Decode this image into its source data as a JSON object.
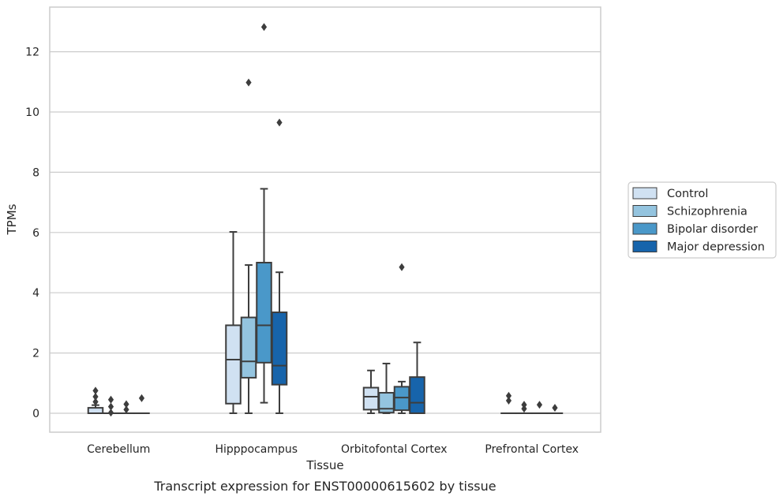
{
  "chart_data": {
    "type": "box",
    "xlabel": "Tissue",
    "ylabel": "TPMs",
    "caption": "Transcript expression for ENST00000615602 by tissue",
    "ylim": [
      -0.62,
      13.5
    ],
    "yticks": [
      0,
      2,
      4,
      6,
      8,
      10,
      12
    ],
    "grid": "horizontal",
    "legend_position": "right",
    "categories": [
      "Cerebellum",
      "Hipppocampus",
      "Orbitofontal Cortex",
      "Prefrontal Cortex"
    ],
    "series": [
      {
        "name": "Control",
        "color": "#d0e1f2",
        "boxes": [
          {
            "q1": 0,
            "median": 0,
            "q3": 0.18,
            "whislo": 0,
            "whishi": 0.27,
            "fliers": [
              0.38,
              0.55,
              0.75
            ]
          },
          {
            "q1": 0.32,
            "median": 1.78,
            "q3": 2.92,
            "whislo": 0,
            "whishi": 6.02,
            "fliers": []
          },
          {
            "q1": 0.12,
            "median": 0.55,
            "q3": 0.85,
            "whislo": 0,
            "whishi": 1.42,
            "fliers": []
          },
          {
            "q1": 0,
            "median": 0,
            "q3": 0,
            "whislo": 0,
            "whishi": 0,
            "fliers": [
              0.42,
              0.58
            ]
          }
        ]
      },
      {
        "name": "Schizophrenia",
        "color": "#94c4df",
        "boxes": [
          {
            "q1": 0,
            "median": 0,
            "q3": 0,
            "whislo": 0,
            "whishi": 0,
            "fliers": [
              0.02,
              0.22,
              0.45
            ]
          },
          {
            "q1": 1.18,
            "median": 1.72,
            "q3": 3.18,
            "whislo": 0,
            "whishi": 4.92,
            "fliers": [
              10.98
            ]
          },
          {
            "q1": 0.02,
            "median": 0.15,
            "q3": 0.68,
            "whislo": 0,
            "whishi": 1.65,
            "fliers": []
          },
          {
            "q1": 0,
            "median": 0,
            "q3": 0,
            "whislo": 0,
            "whishi": 0,
            "fliers": [
              0.15,
              0.28
            ]
          }
        ]
      },
      {
        "name": "Bipolar disorder",
        "color": "#4a98c9",
        "boxes": [
          {
            "q1": 0,
            "median": 0,
            "q3": 0,
            "whislo": 0,
            "whishi": 0,
            "fliers": [
              0.12,
              0.3
            ]
          },
          {
            "q1": 1.68,
            "median": 2.92,
            "q3": 5.0,
            "whislo": 0.35,
            "whishi": 7.45,
            "fliers": [
              12.82
            ]
          },
          {
            "q1": 0.1,
            "median": 0.52,
            "q3": 0.88,
            "whislo": 0,
            "whishi": 1.05,
            "fliers": [
              4.85
            ]
          },
          {
            "q1": 0,
            "median": 0,
            "q3": 0,
            "whislo": 0,
            "whishi": 0,
            "fliers": [
              0.28
            ]
          }
        ]
      },
      {
        "name": "Major depression",
        "color": "#1764ab",
        "boxes": [
          {
            "q1": 0,
            "median": 0,
            "q3": 0,
            "whislo": 0,
            "whishi": 0,
            "fliers": [
              0.5
            ]
          },
          {
            "q1": 0.95,
            "median": 1.58,
            "q3": 3.35,
            "whislo": 0,
            "whishi": 4.68,
            "fliers": [
              9.65
            ]
          },
          {
            "q1": 0,
            "median": 0.35,
            "q3": 1.2,
            "whislo": 0,
            "whishi": 2.35,
            "fliers": []
          },
          {
            "q1": 0,
            "median": 0,
            "q3": 0,
            "whislo": 0,
            "whishi": 0,
            "fliers": [
              0.18
            ]
          }
        ]
      }
    ]
  }
}
